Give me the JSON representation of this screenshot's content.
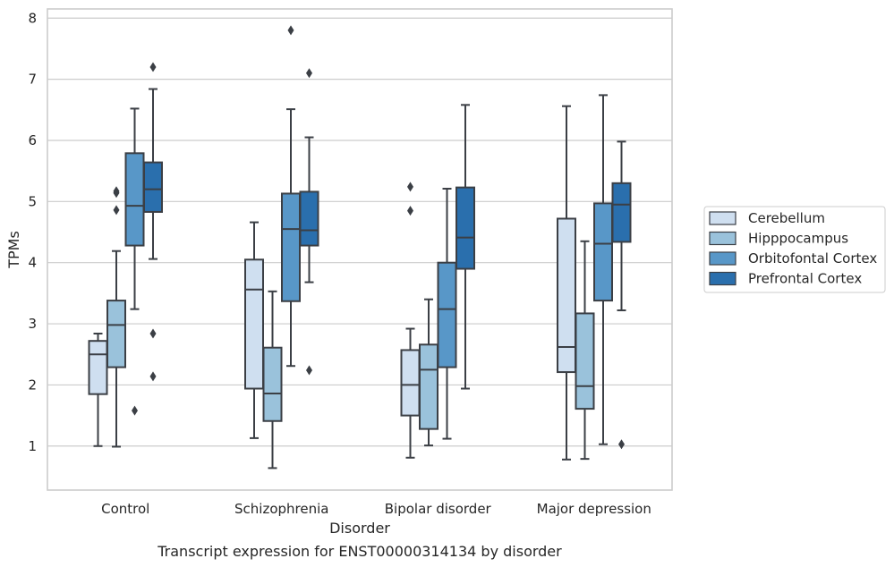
{
  "chart_data": {
    "type": "box",
    "title": "Transcript expression for ENST00000314134 by disorder",
    "xlabel": "Disorder",
    "ylabel": "TPMs",
    "ylim": [
      0.28,
      8.15
    ],
    "yticks": [
      1,
      2,
      3,
      4,
      5,
      6,
      7,
      8
    ],
    "grid": "horizontal",
    "legend_position": "right",
    "categories": [
      "Control",
      "Schizophrenia",
      "Bipolar disorder",
      "Major depression"
    ],
    "series": [
      {
        "name": "Cerebellum",
        "color": "#cfdff0",
        "boxes": [
          {
            "whislo": 1.0,
            "q1": 1.85,
            "med": 2.5,
            "q3": 2.72,
            "whishi": 2.84,
            "fliers": []
          },
          {
            "whislo": 1.13,
            "q1": 1.94,
            "med": 3.56,
            "q3": 4.05,
            "whishi": 4.66,
            "fliers": []
          },
          {
            "whislo": 0.81,
            "q1": 1.5,
            "med": 2.0,
            "q3": 2.57,
            "whishi": 2.92,
            "fliers": [
              4.85,
              5.24
            ]
          },
          {
            "whislo": 0.78,
            "q1": 2.21,
            "med": 2.62,
            "q3": 4.72,
            "whishi": 6.56,
            "fliers": []
          }
        ]
      },
      {
        "name": "Hipppocampus",
        "color": "#9ac2db",
        "boxes": [
          {
            "whislo": 0.99,
            "q1": 2.29,
            "med": 2.98,
            "q3": 3.38,
            "whishi": 4.19,
            "fliers": [
              4.86,
              5.14,
              5.17
            ]
          },
          {
            "whislo": 0.64,
            "q1": 1.41,
            "med": 1.86,
            "q3": 2.61,
            "whishi": 3.53,
            "fliers": []
          },
          {
            "whislo": 1.01,
            "q1": 1.28,
            "med": 2.25,
            "q3": 2.66,
            "whishi": 3.4,
            "fliers": []
          },
          {
            "whislo": 0.79,
            "q1": 1.61,
            "med": 1.98,
            "q3": 3.17,
            "whishi": 4.35,
            "fliers": []
          }
        ]
      },
      {
        "name": "Orbitofontal Cortex",
        "color": "#5897c8",
        "boxes": [
          {
            "whislo": 3.24,
            "q1": 4.28,
            "med": 4.93,
            "q3": 5.79,
            "whishi": 6.52,
            "fliers": [
              1.58
            ]
          },
          {
            "whislo": 2.31,
            "q1": 3.37,
            "med": 4.55,
            "q3": 5.13,
            "whishi": 6.51,
            "fliers": [
              7.8
            ]
          },
          {
            "whislo": 1.12,
            "q1": 2.29,
            "med": 3.24,
            "q3": 4.0,
            "whishi": 5.21,
            "fliers": []
          },
          {
            "whislo": 1.03,
            "q1": 3.38,
            "med": 4.31,
            "q3": 4.97,
            "whishi": 6.74,
            "fliers": []
          }
        ]
      },
      {
        "name": "Prefrontal Cortex",
        "color": "#2a6fad",
        "boxes": [
          {
            "whislo": 4.06,
            "q1": 4.83,
            "med": 5.2,
            "q3": 5.64,
            "whishi": 6.84,
            "fliers": [
              2.14,
              2.84,
              7.2
            ]
          },
          {
            "whislo": 3.68,
            "q1": 4.28,
            "med": 4.53,
            "q3": 5.16,
            "whishi": 6.05,
            "fliers": [
              2.24,
              7.1
            ]
          },
          {
            "whislo": 1.94,
            "q1": 3.9,
            "med": 4.41,
            "q3": 5.23,
            "whishi": 6.58,
            "fliers": []
          },
          {
            "whislo": 3.22,
            "q1": 4.34,
            "med": 4.95,
            "q3": 5.3,
            "whishi": 5.98,
            "fliers": [
              1.03
            ]
          }
        ]
      }
    ]
  }
}
